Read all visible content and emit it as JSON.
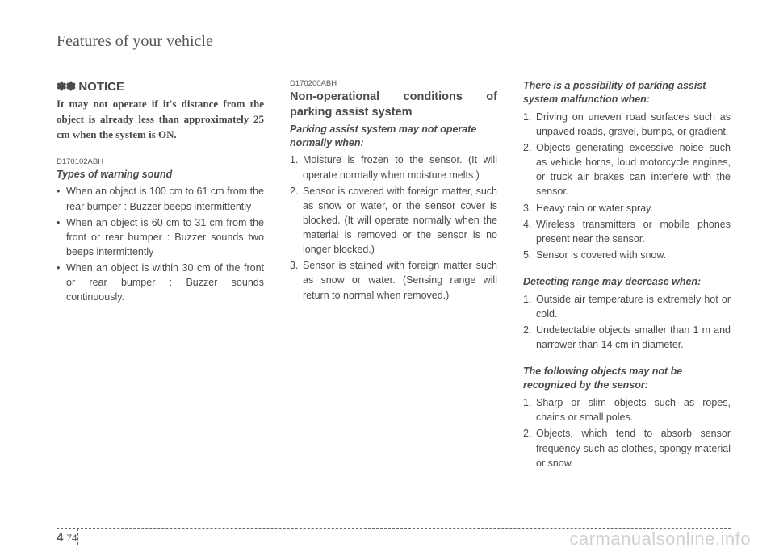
{
  "header": "Features of your vehicle",
  "col1": {
    "notice": {
      "mark": "✽✽",
      "title": "NOTICE",
      "body": "It may not operate if it's distance from the object is already less than approximately 25 cm when the system is ON."
    },
    "code": "D170102ABH",
    "subhead": "Types of warning sound",
    "items": [
      "When an object is 100 cm to 61 cm from the rear bumper : Buzzer beeps intermittently",
      "When an object is 60 cm to 31 cm from the front or rear bumper : Buzzer sounds two beeps intermittently",
      "When an object is within 30 cm of the front or rear bumper : Buzzer sounds continuously."
    ]
  },
  "col2": {
    "code": "D170200ABH",
    "heading": "Non-operational conditions of parking assist system",
    "subhead": "Parking assist system may not operate normally when:",
    "items": [
      "Moisture is frozen to the sensor. (It will operate normally when moisture melts.)",
      "Sensor is covered with foreign matter, such as snow or water, or the sensor cover is blocked. (It will operate normally when the material is removed or the sensor is no longer blocked.)",
      "Sensor is stained with foreign matter such as snow or water. (Sensing range will return to normal when removed.)"
    ]
  },
  "col3": {
    "block1": {
      "subhead": "There is a possibility of parking assist system malfunction when:",
      "items": [
        "Driving on uneven road surfaces such as unpaved roads, gravel, bumps, or gradient.",
        "Objects generating excessive noise such as vehicle horns, loud motorcycle engines, or truck air brakes can interfere with the sensor.",
        "Heavy rain or water spray.",
        "Wireless transmitters or mobile phones present near the sensor.",
        "Sensor is covered with snow."
      ]
    },
    "block2": {
      "subhead": "Detecting range may decrease when:",
      "items": [
        "Outside air temperature is extremely hot or cold.",
        "Undetectable objects smaller than 1 m and narrower than 14 cm in diameter."
      ]
    },
    "block3": {
      "subhead": "The following objects may not be recognized by the sensor:",
      "items": [
        "Sharp or slim objects such as ropes, chains or small poles.",
        "Objects, which tend to absorb sensor frequency such as clothes, spongy material or snow."
      ]
    }
  },
  "page": {
    "section": "4",
    "num": "74"
  },
  "watermark": "carmanualsonline.info"
}
